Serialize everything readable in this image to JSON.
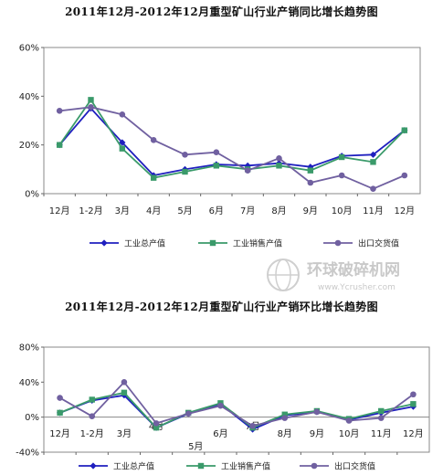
{
  "chart_data": [
    {
      "type": "line",
      "title": "2011年12月-2012年12月重型矿山行业产销同比增长趋势图",
      "categories": [
        "12月",
        "1-2月",
        "3月",
        "4月",
        "5月",
        "6月",
        "7月",
        "8月",
        "9月",
        "10月",
        "11月",
        "12月"
      ],
      "ylim": [
        0,
        0.6
      ],
      "yticks": [
        "0%",
        "20%",
        "40%",
        "60%"
      ],
      "grid": false,
      "legend_position": "bottom",
      "series": [
        {
          "name": "工业总产值",
          "color": "#1f1fbf",
          "marker": "diamond",
          "values": [
            0.2,
            0.35,
            0.21,
            0.075,
            0.1,
            0.12,
            0.115,
            0.125,
            0.11,
            0.155,
            0.16,
            0.26
          ]
        },
        {
          "name": "工业销售产值",
          "color": "#3a9a6a",
          "marker": "square",
          "values": [
            0.2,
            0.385,
            0.185,
            0.065,
            0.09,
            0.115,
            0.1,
            0.115,
            0.095,
            0.15,
            0.13,
            0.26
          ]
        },
        {
          "name": "出口交货值",
          "color": "#7060a0",
          "marker": "circle",
          "values": [
            0.34,
            0.355,
            0.325,
            0.22,
            0.16,
            0.17,
            0.095,
            0.145,
            0.045,
            0.075,
            0.02,
            0.075
          ]
        }
      ]
    },
    {
      "type": "line",
      "title": "2011年12月-2012年12月重型矿山行业产销环比增长趋势图",
      "categories": [
        "12月",
        "1-2月",
        "3月",
        "4月",
        "5月",
        "6月",
        "7月",
        "8月",
        "9月",
        "10月",
        "11月",
        "12月"
      ],
      "ylim": [
        -0.4,
        0.8
      ],
      "yticks": [
        "-40%",
        "0%",
        "40%",
        "80%"
      ],
      "grid": false,
      "legend_position": "bottom",
      "series": [
        {
          "name": "工业总产值",
          "color": "#1f1fbf",
          "marker": "diamond",
          "values": [
            0.05,
            0.19,
            0.25,
            -0.12,
            0.04,
            0.15,
            -0.14,
            0.02,
            0.06,
            -0.03,
            0.05,
            0.12
          ]
        },
        {
          "name": "工业销售产值",
          "color": "#3a9a6a",
          "marker": "square",
          "values": [
            0.05,
            0.2,
            0.28,
            -0.12,
            0.05,
            0.16,
            -0.12,
            0.03,
            0.07,
            -0.02,
            0.07,
            0.15
          ]
        },
        {
          "name": "出口交货值",
          "color": "#7060a0",
          "marker": "circle",
          "values": [
            0.22,
            0.01,
            0.4,
            -0.07,
            0.04,
            0.13,
            -0.1,
            -0.01,
            0.06,
            -0.04,
            -0.01,
            0.26
          ]
        }
      ]
    }
  ],
  "watermark": {
    "text_cn": "环球破碎机网",
    "text_en": "www.Ycrusher.com"
  }
}
